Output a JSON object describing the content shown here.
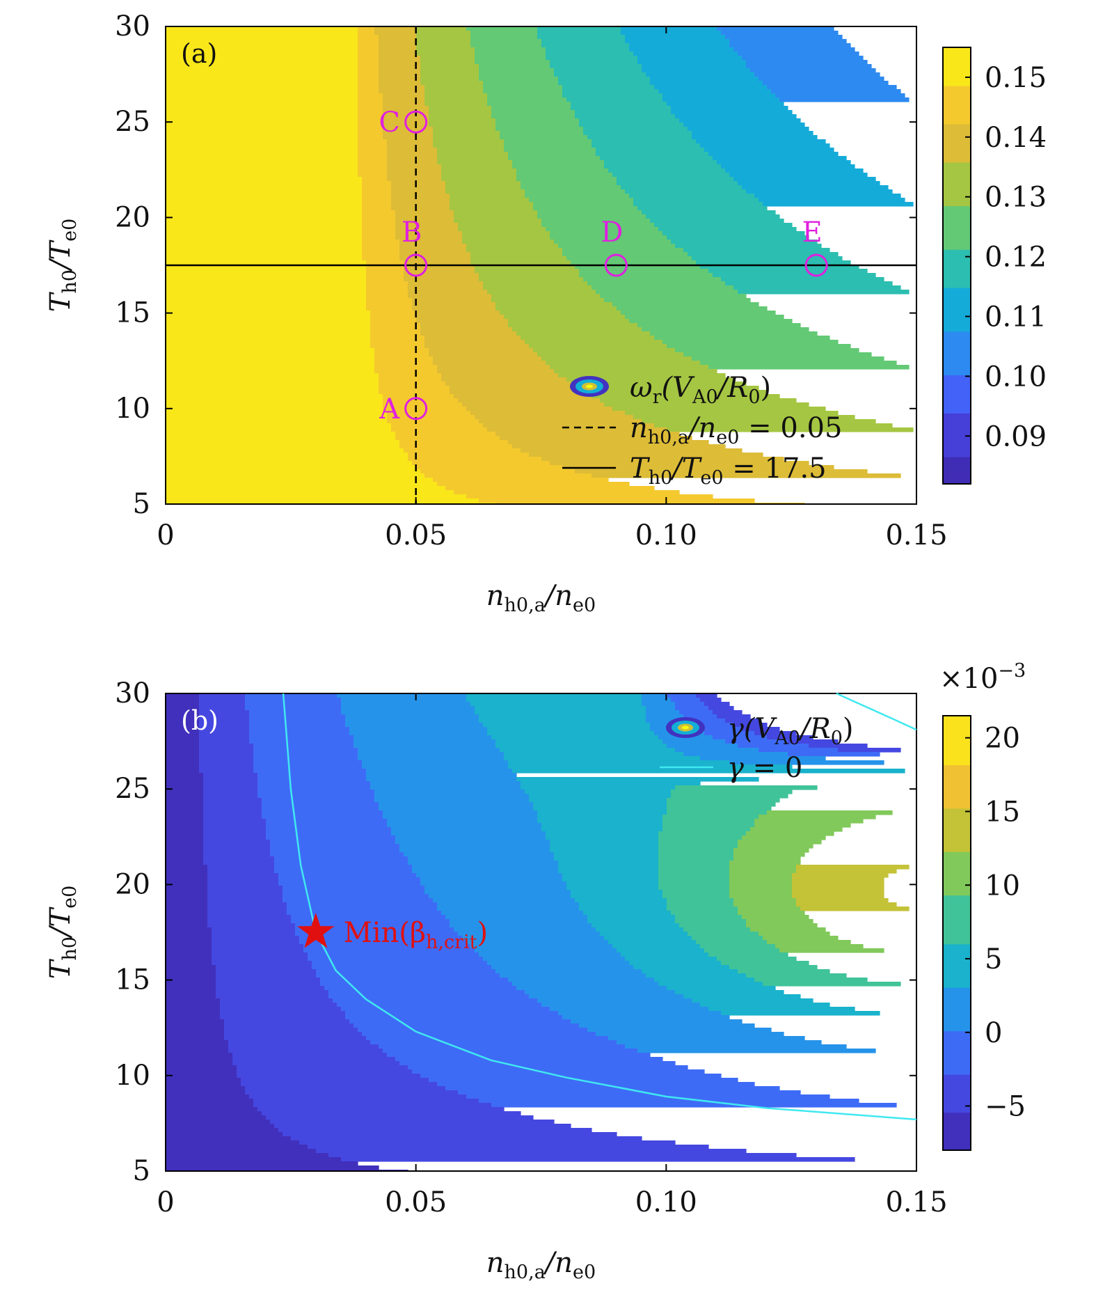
{
  "chart_data": [
    {
      "type": "heatmap",
      "panel_label": "(a)",
      "xlabel": {
        "main": "n",
        "sub": "h0,a",
        "mid": "/n",
        "sub2": "e0"
      },
      "ylabel": {
        "main": "T",
        "sub": "h0",
        "mid": "/T",
        "sub2": "e0"
      },
      "xlim": [
        0,
        0.15
      ],
      "ylim": [
        5,
        30
      ],
      "x_ticks": [
        0,
        0.05,
        0.1,
        0.15
      ],
      "x_tick_labels": [
        "0",
        "0.05",
        "0.10",
        "0.15"
      ],
      "y_ticks": [
        5,
        10,
        15,
        20,
        25,
        30
      ],
      "y_tick_labels": [
        "5",
        "10",
        "15",
        "20",
        "25",
        "30"
      ],
      "colorbar": {
        "range": [
          0.082,
          0.155
        ],
        "ticks": [
          0.15,
          0.14,
          0.13,
          0.12,
          0.11,
          0.1,
          0.09
        ],
        "tick_labels": [
          "0.15",
          "0.14",
          "0.13",
          "0.12",
          "0.11",
          "0.10",
          "0.09"
        ]
      },
      "contour_levels": [
        0.148,
        0.142,
        0.135,
        0.128,
        0.121,
        0.114,
        0.107,
        0.1,
        0.093,
        0.086
      ],
      "contour_field": "omega_r(n, T) ≈ 0.156 - 0.0011*sqrt(max(0, n-0.036)*1000*(T-3.2)), read off colour bands",
      "vertical_line": {
        "x": 0.05,
        "style": "dashed"
      },
      "horizontal_line": {
        "y": 17.5,
        "style": "solid"
      },
      "points": [
        {
          "label": "A",
          "x": 0.05,
          "y": 10
        },
        {
          "label": "B",
          "x": 0.05,
          "y": 17.5
        },
        {
          "label": "C",
          "x": 0.05,
          "y": 25
        },
        {
          "label": "D",
          "x": 0.09,
          "y": 17.5
        },
        {
          "label": "E",
          "x": 0.13,
          "y": 17.5
        }
      ],
      "point_color": "#e020e0",
      "legend_position": "lower-right",
      "legend": [
        {
          "kind": "contour",
          "main": "ω",
          "sub": "r",
          "rest": "(V",
          "sub2": "A0",
          "rest2": "/R",
          "sub3": "0",
          "rest3": ")"
        },
        {
          "kind": "dashed",
          "main": "n",
          "sub": "h0,a",
          "rest": "/n",
          "sub2": "e0",
          "rest2": " = 0.05"
        },
        {
          "kind": "solid",
          "main": "T",
          "sub": "h0",
          "rest": "/T",
          "sub2": "e0",
          "rest2": " = 17.5"
        }
      ]
    },
    {
      "type": "heatmap",
      "panel_label": "(b)",
      "xlabel": {
        "main": "n",
        "sub": "h0,a",
        "mid": "/n",
        "sub2": "e0"
      },
      "ylabel": {
        "main": "T",
        "sub": "h0",
        "mid": "/T",
        "sub2": "e0"
      },
      "xlim": [
        0,
        0.15
      ],
      "ylim": [
        5,
        30
      ],
      "x_ticks": [
        0,
        0.05,
        0.1,
        0.15
      ],
      "x_tick_labels": [
        "0",
        "0.05",
        "0.10",
        "0.15"
      ],
      "y_ticks": [
        5,
        10,
        15,
        20,
        25,
        30
      ],
      "y_tick_labels": [
        "5",
        "10",
        "15",
        "20",
        "25",
        "30"
      ],
      "colorbar": {
        "range": [
          -8,
          21.5
        ],
        "ticks": [
          20,
          15,
          10,
          5,
          0,
          -5
        ],
        "tick_labels": [
          "20",
          "15",
          "10",
          "5",
          "0",
          "−5"
        ],
        "multiplier": "×10",
        "multiplier_exp": "−3"
      },
      "contour_levels": [
        -5.5,
        -3,
        0,
        3,
        6,
        9,
        12,
        15,
        18
      ],
      "zero_contour": [
        [
          0.0235,
          30
        ],
        [
          0.025,
          25
        ],
        [
          0.027,
          21
        ],
        [
          0.03,
          17.5
        ],
        [
          0.034,
          15.5
        ],
        [
          0.04,
          14
        ],
        [
          0.05,
          12.3
        ],
        [
          0.065,
          10.8
        ],
        [
          0.08,
          9.9
        ],
        [
          0.1,
          8.9
        ],
        [
          0.12,
          8.3
        ],
        [
          0.15,
          7.7
        ]
      ],
      "upper_contour": [
        [
          0.134,
          30
        ],
        [
          0.145,
          28.7
        ],
        [
          0.15,
          28.1
        ]
      ],
      "zero_contour_color": "#40e8f0",
      "marker": {
        "type": "star",
        "x": 0.03,
        "y": 17.5,
        "color": "#e01010",
        "label": "Min(β",
        "label_sub": "h,crit",
        "label_end": ")"
      },
      "legend_position": "upper-right",
      "legend": [
        {
          "kind": "contour",
          "main": "γ",
          "sub": "",
          "rest": "(V",
          "sub2": "A0",
          "rest2": "/R",
          "sub3": "0",
          "rest3": ")"
        },
        {
          "kind": "cyan",
          "main": "γ",
          "sub": "",
          "rest": " = 0",
          "sub2": "",
          "rest2": ""
        }
      ]
    }
  ]
}
